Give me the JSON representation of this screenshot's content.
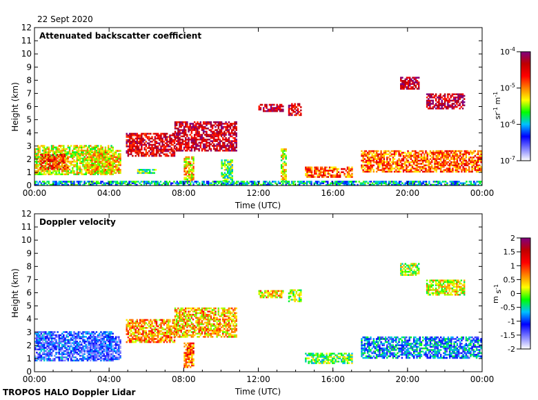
{
  "date_label": "22 Sept 2020",
  "footer": "TROPOS HALO Doppler Lidar",
  "colors": {
    "background": "#ffffff",
    "axis": "#000000",
    "scale": [
      "#ffffff",
      "#7f7fff",
      "#0000ff",
      "#00c0ff",
      "#00ff00",
      "#ffff00",
      "#ff8000",
      "#ff0000",
      "#c00000",
      "#800080"
    ]
  },
  "chart_data": [
    {
      "type": "heatmap",
      "title": "Attenuated backscatter coefficient",
      "xlabel": "Time (UTC)",
      "ylabel": "Height (km)",
      "xlim": [
        0,
        24
      ],
      "ylim": [
        0,
        12
      ],
      "x_ticks": [
        "00:00",
        "04:00",
        "08:00",
        "12:00",
        "16:00",
        "20:00",
        "00:00"
      ],
      "y_ticks": [
        "0",
        "1",
        "2",
        "3",
        "4",
        "5",
        "6",
        "7",
        "8",
        "9",
        "10",
        "11",
        "12"
      ],
      "colorbar": {
        "scale": "log",
        "range": [
          1e-07,
          0.0001
        ],
        "tick_labels": [
          {
            "base": "10",
            "exp": "-7"
          },
          {
            "base": "10",
            "exp": "-6"
          },
          {
            "base": "10",
            "exp": "-5"
          },
          {
            "base": "10",
            "exp": "-4"
          }
        ],
        "unit": {
          "a": "sr",
          "a_exp": "-1",
          "b": " m",
          "b_exp": "-1"
        }
      },
      "features": [
        {
          "t0": 0.0,
          "t1": 4.2,
          "h0": 0.8,
          "h1": 3.0,
          "value": 0.55
        },
        {
          "t0": 0.3,
          "t1": 1.8,
          "h0": 1.2,
          "h1": 2.4,
          "value": 0.75
        },
        {
          "t0": 2.8,
          "t1": 4.6,
          "h0": 0.9,
          "h1": 2.6,
          "value": 0.6
        },
        {
          "t0": 5.5,
          "t1": 6.5,
          "h0": 0.9,
          "h1": 1.2,
          "value": 0.45
        },
        {
          "t0": 4.9,
          "t1": 7.5,
          "h0": 2.2,
          "h1": 4.0,
          "value": 0.85
        },
        {
          "t0": 7.5,
          "t1": 10.8,
          "h0": 2.6,
          "h1": 4.8,
          "value": 0.88
        },
        {
          "t0": 8.0,
          "t1": 8.5,
          "h0": 0.3,
          "h1": 2.2,
          "value": 0.6
        },
        {
          "t0": 10.0,
          "t1": 10.6,
          "h0": 0.3,
          "h1": 1.9,
          "value": 0.45
        },
        {
          "t0": 12.0,
          "t1": 13.3,
          "h0": 5.6,
          "h1": 6.1,
          "value": 0.9
        },
        {
          "t0": 13.6,
          "t1": 14.3,
          "h0": 5.3,
          "h1": 6.2,
          "value": 0.85
        },
        {
          "t0": 13.2,
          "t1": 13.5,
          "h0": 0.3,
          "h1": 2.8,
          "value": 0.55
        },
        {
          "t0": 14.5,
          "t1": 17.0,
          "h0": 0.6,
          "h1": 1.4,
          "value": 0.7
        },
        {
          "t0": 17.5,
          "t1": 24.0,
          "h0": 1.0,
          "h1": 2.6,
          "value": 0.7
        },
        {
          "t0": 19.6,
          "t1": 20.6,
          "h0": 7.3,
          "h1": 8.2,
          "value": 0.9
        },
        {
          "t0": 21.0,
          "t1": 23.0,
          "h0": 5.8,
          "h1": 7.0,
          "value": 0.9
        },
        {
          "t0": 0.0,
          "t1": 24.0,
          "h0": 0.0,
          "h1": 0.3,
          "value": 0.35
        }
      ]
    },
    {
      "type": "heatmap",
      "title": "Doppler velocity",
      "xlabel": "Time (UTC)",
      "ylabel": "Height (km)",
      "xlim": [
        0,
        24
      ],
      "ylim": [
        0,
        12
      ],
      "x_ticks": [
        "00:00",
        "04:00",
        "08:00",
        "12:00",
        "16:00",
        "20:00",
        "00:00"
      ],
      "y_ticks": [
        "0",
        "1",
        "2",
        "3",
        "4",
        "5",
        "6",
        "7",
        "8",
        "9",
        "10",
        "11",
        "12"
      ],
      "colorbar": {
        "scale": "linear",
        "range": [
          -2,
          2
        ],
        "tick_labels": [
          "-2",
          "-1.5",
          "-1",
          "-0.5",
          "0",
          "0.5",
          "1",
          "1.5",
          "2"
        ],
        "unit": {
          "a": "m",
          "a_exp": "",
          "b": " s",
          "b_exp": "-1"
        }
      },
      "features": [
        {
          "t0": 0.0,
          "t1": 4.2,
          "h0": 0.8,
          "h1": 3.0,
          "value": 0.22
        },
        {
          "t0": 2.8,
          "t1": 4.6,
          "h0": 0.9,
          "h1": 2.6,
          "value": 0.18
        },
        {
          "t0": 4.9,
          "t1": 7.5,
          "h0": 2.2,
          "h1": 4.0,
          "value": 0.65
        },
        {
          "t0": 7.5,
          "t1": 10.8,
          "h0": 2.6,
          "h1": 4.8,
          "value": 0.62
        },
        {
          "t0": 8.0,
          "t1": 8.5,
          "h0": 0.3,
          "h1": 2.2,
          "value": 0.7
        },
        {
          "t0": 12.0,
          "t1": 13.3,
          "h0": 5.6,
          "h1": 6.1,
          "value": 0.6
        },
        {
          "t0": 13.6,
          "t1": 14.3,
          "h0": 5.3,
          "h1": 6.2,
          "value": 0.5
        },
        {
          "t0": 14.5,
          "t1": 17.0,
          "h0": 0.6,
          "h1": 1.4,
          "value": 0.45
        },
        {
          "t0": 17.5,
          "t1": 24.0,
          "h0": 1.0,
          "h1": 2.6,
          "value": 0.3
        },
        {
          "t0": 19.6,
          "t1": 20.6,
          "h0": 7.3,
          "h1": 8.2,
          "value": 0.5
        },
        {
          "t0": 21.0,
          "t1": 23.0,
          "h0": 5.8,
          "h1": 7.0,
          "value": 0.55
        }
      ]
    }
  ]
}
